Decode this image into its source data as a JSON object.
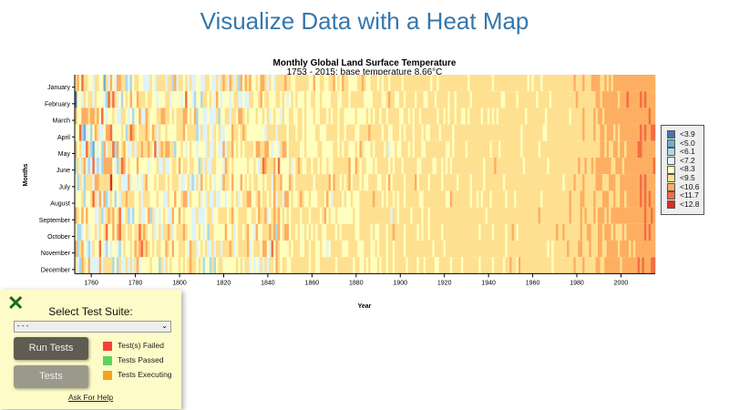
{
  "page": {
    "title": "Visualize Data with a Heat Map"
  },
  "test_panel": {
    "close_icon": "x-icon",
    "select_label": "Select Test Suite:",
    "select_value": "- - -",
    "run_button": "Run Tests",
    "tests_button": "Tests",
    "legend": [
      {
        "label": "Test(s) Failed",
        "color": "#f44336"
      },
      {
        "label": "Tests Passed",
        "color": "#5ad55a"
      },
      {
        "label": "Tests Executing",
        "color": "#f7a21b"
      }
    ],
    "help_link": "Ask For Help"
  },
  "chart_data": {
    "type": "heatmap",
    "title": "Monthly Global Land Surface Temperature",
    "subtitle": "1753 - 2015: base temperature 8.66°C",
    "base_temperature": 8.66,
    "xlabel": "Year",
    "ylabel": "Months",
    "xlim": [
      1753,
      2015
    ],
    "x_ticks": [
      "1760",
      "1780",
      "1800",
      "1820",
      "1840",
      "1860",
      "1880",
      "1900",
      "1920",
      "1940",
      "1960",
      "1980",
      "2000"
    ],
    "y_categories": [
      "January",
      "February",
      "March",
      "April",
      "May",
      "June",
      "July",
      "August",
      "September",
      "October",
      "November",
      "December"
    ],
    "legend": [
      {
        "label": "<3.9",
        "color": "#4575b4"
      },
      {
        "label": "<5.0",
        "color": "#74add1"
      },
      {
        "label": "<6.1",
        "color": "#abd9e9"
      },
      {
        "label": "<7.2",
        "color": "#e0f3f8"
      },
      {
        "label": "<8.3",
        "color": "#ffffbf"
      },
      {
        "label": "<9.5",
        "color": "#fee090"
      },
      {
        "label": "<10.6",
        "color": "#fdae61"
      },
      {
        "label": "<11.7",
        "color": "#f46d43"
      },
      {
        "label": "<12.8",
        "color": "#d73027"
      }
    ],
    "legend_position": "right"
  }
}
